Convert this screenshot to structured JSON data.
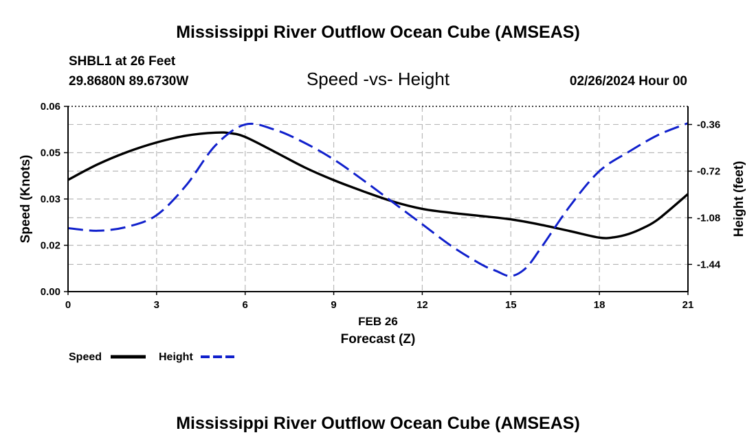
{
  "chart_data": {
    "type": "line",
    "title": "Mississippi River Outflow Ocean Cube (AMSEAS)",
    "footer_title": "Mississippi River Outflow Ocean Cube (AMSEAS)",
    "subtitle": "Speed -vs- Height",
    "station": "SHBL1 at 26 Feet",
    "location": "29.8680N  89.6730W",
    "date": "02/26/2024 Hour 00",
    "xlabel": "Forecast (Z)",
    "date_label": "FEB 26",
    "ylabel_left": "Speed (Knots)",
    "ylabel_right": "Height (feet)",
    "xlim": [
      0,
      21
    ],
    "ylim_left": [
      0,
      0.06
    ],
    "ylim_right": [
      -1.65,
      -0.22
    ],
    "x_ticks": [
      {
        "value": 0,
        "label": "0"
      },
      {
        "value": 3,
        "label": "3"
      },
      {
        "value": 6,
        "label": "6"
      },
      {
        "value": 9,
        "label": "9"
      },
      {
        "value": 12,
        "label": "12"
      },
      {
        "value": 15,
        "label": "15"
      },
      {
        "value": 18,
        "label": "18"
      },
      {
        "value": 21,
        "label": "21"
      }
    ],
    "y_left_ticks": [
      {
        "value": 0,
        "label": "0.00"
      },
      {
        "value": 0.015,
        "label": "0.02"
      },
      {
        "value": 0.03,
        "label": "0.03"
      },
      {
        "value": 0.045,
        "label": "0.05"
      },
      {
        "value": 0.06,
        "label": "0.06"
      }
    ],
    "y_right_ticks": [
      {
        "value": -0.36,
        "label": "-0.36"
      },
      {
        "value": -0.72,
        "label": "-0.72"
      },
      {
        "value": -1.08,
        "label": "-1.08"
      },
      {
        "value": -1.44,
        "label": "-1.44"
      }
    ],
    "grid": true,
    "legend_position": "bottom-left",
    "series": [
      {
        "name": "Speed",
        "axis": "left",
        "color": "#000000",
        "dash": "solid",
        "x": [
          0,
          1,
          2,
          3,
          4,
          5,
          5.5,
          6,
          7,
          8,
          9,
          10,
          11,
          12,
          13,
          14,
          15,
          16,
          17,
          18,
          18.5,
          19,
          19.5,
          20,
          21
        ],
        "values": [
          0.0362,
          0.0412,
          0.0452,
          0.0483,
          0.0505,
          0.0515,
          0.0513,
          0.0501,
          0.0453,
          0.0403,
          0.0361,
          0.0325,
          0.0292,
          0.0268,
          0.0255,
          0.0245,
          0.0234,
          0.0217,
          0.0196,
          0.0175,
          0.0176,
          0.0187,
          0.0207,
          0.0235,
          0.0316
        ]
      },
      {
        "name": "Height",
        "axis": "right",
        "color": "#1020cc",
        "dash": "dashed",
        "x": [
          0,
          1,
          2,
          3,
          4,
          5,
          6,
          7,
          8,
          9,
          10,
          11,
          12,
          13,
          14,
          14.5,
          15,
          15.5,
          16,
          17,
          18,
          19,
          20,
          21
        ],
        "values": [
          -1.16,
          -1.18,
          -1.15,
          -1.06,
          -0.83,
          -0.52,
          -0.36,
          -0.4,
          -0.5,
          -0.63,
          -0.79,
          -0.96,
          -1.13,
          -1.3,
          -1.44,
          -1.49,
          -1.53,
          -1.47,
          -1.32,
          -0.99,
          -0.72,
          -0.57,
          -0.44,
          -0.35
        ]
      }
    ]
  }
}
